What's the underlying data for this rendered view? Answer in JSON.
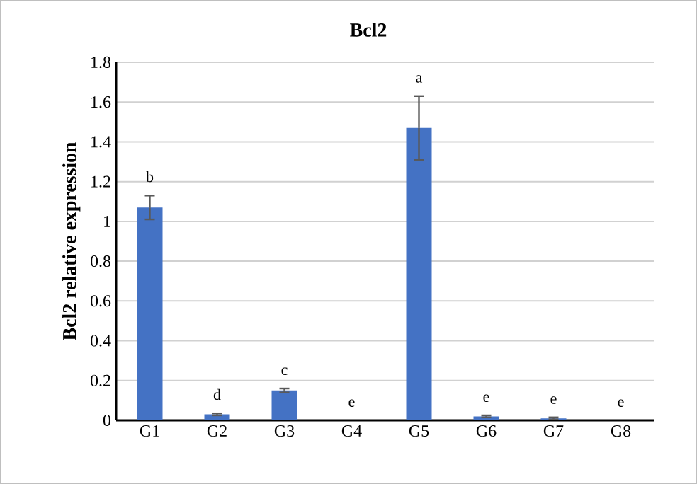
{
  "chart_data": {
    "type": "bar",
    "title": "Bcl2",
    "ylabel": "Bcl2 relative expression",
    "categories": [
      "G1",
      "G2",
      "G3",
      "G4",
      "G5",
      "G6",
      "G7",
      "G8"
    ],
    "values": [
      1.07,
      0.03,
      0.15,
      0,
      1.47,
      0.02,
      0.01,
      0
    ],
    "errors": [
      0.06,
      0.005,
      0.01,
      null,
      0.16,
      0.005,
      0.005,
      null
    ],
    "color": "#4472c4",
    "ylim": [
      0,
      1.8
    ],
    "yticks": [
      0,
      0.2,
      0.4,
      0.6,
      0.8,
      1,
      1.2,
      1.4,
      1.6,
      1.8
    ],
    "grid": "y",
    "annotations": [
      "b",
      "d",
      "c",
      "e",
      "a",
      "e",
      "e",
      "e"
    ]
  }
}
